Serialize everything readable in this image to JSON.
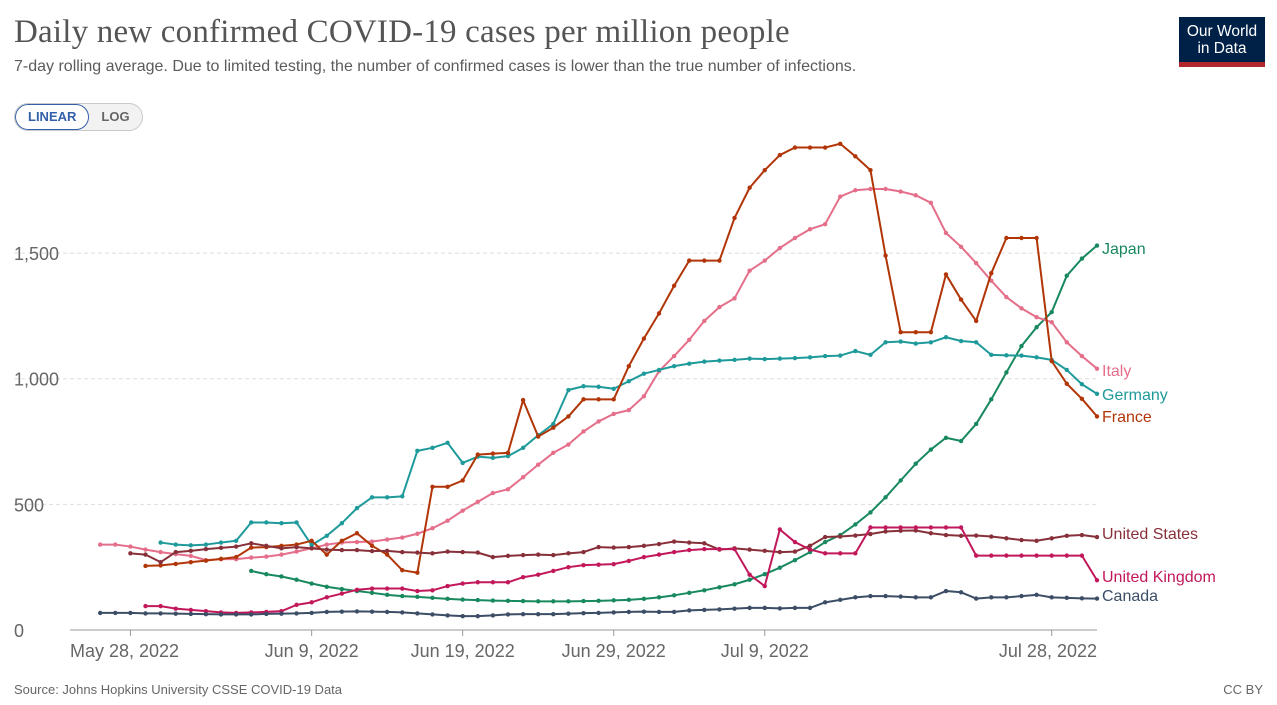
{
  "header": {
    "title": "Daily new confirmed COVID-19 cases per million people",
    "subtitle": "7-day rolling average. Due to limited testing, the number of confirmed cases is lower than the true number of infections.",
    "logo_line1": "Our World",
    "logo_line2": "in Data"
  },
  "controls": {
    "linear_label": "LINEAR",
    "log_label": "LOG",
    "active": "LINEAR"
  },
  "footer": {
    "source": "Source: Johns Hopkins University CSSE COVID-19 Data",
    "license": "CC BY"
  },
  "colors": {
    "Japan": "#18895e",
    "Italy": "#e56e8a",
    "Germany": "#1f9a9a",
    "France": "#b13507",
    "United States": "#883039",
    "United Kingdom": "#c2185b",
    "Canada": "#3c4e66",
    "grid": "#dddddd",
    "axis_text": "#666666"
  },
  "chart_data": {
    "type": "line",
    "x_start": "2022-05-24",
    "x_end": "2022-07-31",
    "x_ticks": [
      {
        "date": "2022-05-28",
        "label": "May 28, 2022"
      },
      {
        "date": "2022-06-09",
        "label": "Jun 9, 2022"
      },
      {
        "date": "2022-06-19",
        "label": "Jun 19, 2022"
      },
      {
        "date": "2022-06-29",
        "label": "Jun 29, 2022"
      },
      {
        "date": "2022-07-09",
        "label": "Jul 9, 2022"
      },
      {
        "date": "2022-07-28",
        "label": "Jul 28, 2022"
      }
    ],
    "y_ticks": [
      0,
      500,
      1000,
      1500
    ],
    "y_tick_labels": [
      "0",
      "500",
      "1,000",
      "1,500"
    ],
    "ylim": [
      0,
      1950
    ],
    "grid": true,
    "legend": "right-end labels",
    "series": [
      {
        "name": "Japan",
        "values": [
          235,
          222,
          213,
          200,
          185,
          172,
          163,
          155,
          148,
          140,
          135,
          132,
          128,
          124,
          121,
          119,
          117,
          116,
          115,
          114,
          114,
          114,
          115,
          116,
          118,
          120,
          124,
          130,
          138,
          148,
          158,
          170,
          182,
          200,
          222,
          248,
          278,
          310,
          350,
          378,
          420,
          468,
          528,
          595,
          662,
          718,
          765,
          752,
          820,
          918,
          1025,
          1130,
          1205,
          1265,
          1410,
          1478,
          1530
        ]
      },
      {
        "name": "Italy",
        "values": [
          340,
          340,
          332,
          320,
          310,
          302,
          295,
          278,
          282,
          282,
          288,
          292,
          300,
          312,
          325,
          340,
          348,
          350,
          352,
          360,
          368,
          383,
          405,
          435,
          475,
          510,
          545,
          560,
          608,
          658,
          705,
          738,
          790,
          830,
          860,
          875,
          930,
          1030,
          1090,
          1155,
          1230,
          1285,
          1320,
          1430,
          1470,
          1520,
          1560,
          1595,
          1615,
          1725,
          1750,
          1755,
          1755,
          1745,
          1730,
          1700,
          1580,
          1525,
          1460,
          1390,
          1325,
          1280,
          1245,
          1225,
          1145,
          1090,
          1040
        ]
      },
      {
        "name": "Germany",
        "values": [
          348,
          340,
          337,
          340,
          348,
          355,
          428,
          428,
          425,
          428,
          338,
          375,
          425,
          485,
          528,
          528,
          532,
          713,
          725,
          745,
          665,
          690,
          685,
          692,
          725,
          775,
          820,
          955,
          970,
          968,
          960,
          990,
          1020,
          1035,
          1050,
          1060,
          1068,
          1072,
          1075,
          1080,
          1078,
          1080,
          1082,
          1085,
          1090,
          1092,
          1110,
          1095,
          1145,
          1148,
          1140,
          1145,
          1165,
          1150,
          1145,
          1095,
          1093,
          1092,
          1085,
          1075,
          1035,
          978,
          940
        ]
      },
      {
        "name": "France",
        "values": [
          255,
          257,
          263,
          270,
          276,
          283,
          290,
          328,
          330,
          335,
          340,
          355,
          300,
          355,
          385,
          335,
          300,
          238,
          228,
          570,
          570,
          595,
          698,
          702,
          705,
          915,
          770,
          805,
          850,
          918,
          918,
          918,
          1050,
          1160,
          1260,
          1370,
          1470,
          1470,
          1470,
          1640,
          1760,
          1830,
          1890,
          1920,
          1920,
          1920,
          1935,
          1885,
          1830,
          1490,
          1185,
          1185,
          1185,
          1415,
          1315,
          1230,
          1420,
          1560,
          1560,
          1560,
          1070,
          980,
          920,
          850
        ]
      },
      {
        "name": "United States",
        "values": [
          305,
          300,
          270,
          310,
          315,
          322,
          327,
          332,
          345,
          335,
          325,
          330,
          325,
          320,
          318,
          318,
          314,
          315,
          310,
          308,
          305,
          312,
          310,
          308,
          290,
          295,
          298,
          300,
          298,
          305,
          310,
          330,
          328,
          330,
          335,
          342,
          352,
          348,
          345,
          320,
          325,
          320,
          315,
          310,
          312,
          335,
          370,
          372,
          376,
          382,
          392,
          395,
          396,
          385,
          378,
          375,
          376,
          372,
          365,
          358,
          355,
          365,
          375,
          378,
          370
        ]
      },
      {
        "name": "United Kingdom",
        "values": [
          95,
          95,
          85,
          80,
          75,
          70,
          68,
          70,
          72,
          75,
          100,
          110,
          130,
          145,
          160,
          165,
          165,
          165,
          155,
          158,
          175,
          185,
          190,
          190,
          190,
          210,
          220,
          235,
          250,
          258,
          260,
          262,
          275,
          290,
          300,
          310,
          318,
          322,
          322,
          322,
          220,
          175,
          400,
          350,
          320,
          305,
          305,
          305,
          408,
          408,
          408,
          408,
          408,
          408,
          408,
          296,
          296,
          296,
          296,
          296,
          296,
          296,
          296,
          198
        ]
      },
      {
        "name": "Canada",
        "values": [
          68,
          68,
          68,
          66,
          66,
          65,
          64,
          63,
          62,
          62,
          62,
          64,
          65,
          66,
          68,
          72,
          73,
          74,
          73,
          72,
          70,
          66,
          62,
          58,
          55,
          55,
          58,
          62,
          63,
          63,
          63,
          65,
          67,
          68,
          70,
          72,
          73,
          72,
          72,
          78,
          80,
          82,
          85,
          88,
          88,
          86,
          88,
          88,
          110,
          120,
          130,
          135,
          135,
          133,
          130,
          130,
          155,
          150,
          125,
          130,
          130,
          135,
          140,
          130,
          128,
          126,
          125
        ]
      }
    ]
  }
}
